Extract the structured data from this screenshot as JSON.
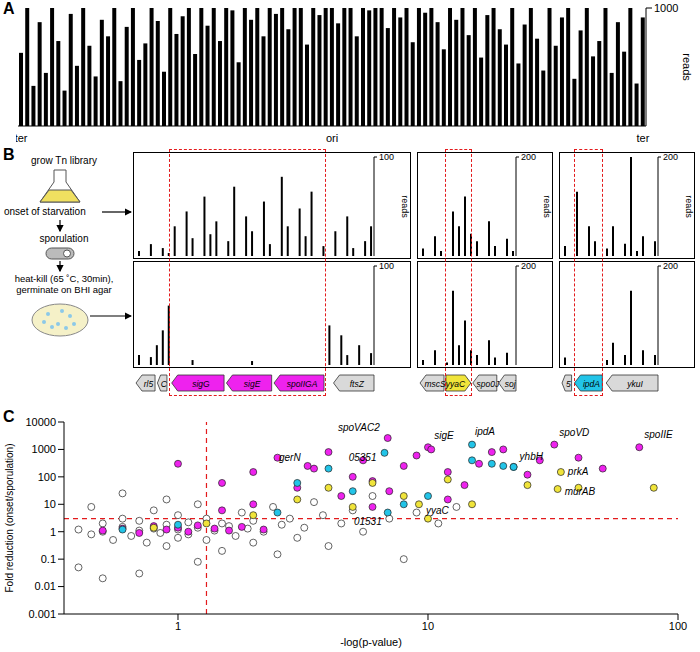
{
  "panel_labels": [
    "A",
    "B",
    "C"
  ],
  "workflow": {
    "steps": [
      "grow Tn library",
      "onset of starvation",
      "sporulation",
      "heat-kill (65 ˚C, 30min), germinate on BHI agar"
    ]
  },
  "gene_maps": [
    [
      {
        "label": "rl5",
        "color": "#d9d9d9"
      },
      {
        "label": "C",
        "color": "#d9d9d9"
      },
      {
        "label": "sigG",
        "color": "#ee22ee"
      },
      {
        "label": "sigE",
        "color": "#ee22ee"
      },
      {
        "label": "spoIIGA",
        "color": "#ee22ee"
      },
      {
        "label": "ftsZ",
        "color": "#d9d9d9"
      }
    ],
    [
      {
        "label": "mscS",
        "color": "#d9d9d9"
      },
      {
        "label": "yyaC",
        "color": "#f0e43a"
      },
      {
        "label": "spo0J",
        "color": "#d9d9d9"
      },
      {
        "label": "soj",
        "color": "#d9d9d9"
      }
    ],
    [
      {
        "label": "5",
        "color": "#d9d9d9"
      },
      {
        "label": "ipdA",
        "color": "#22c4e8"
      },
      {
        "label": "ykuI",
        "color": "#d9d9d9"
      }
    ]
  ],
  "chart_data": [
    {
      "type": "bar",
      "color": "#000000",
      "y_label": "reads",
      "ylim": [
        0,
        1000
      ],
      "yticks": [
        1000
      ],
      "categories": [
        "ter",
        null,
        null,
        null,
        null,
        null,
        null,
        null,
        null,
        null,
        null,
        null,
        null,
        null,
        null,
        null,
        null,
        null,
        null,
        null,
        null,
        null,
        null,
        null,
        null,
        null,
        null,
        null,
        null,
        null,
        null,
        null,
        null,
        null,
        null,
        null,
        null,
        null,
        null,
        null,
        null,
        null,
        null,
        null,
        null,
        null,
        null,
        null,
        null,
        null,
        "ori",
        null,
        null,
        null,
        null,
        null,
        null,
        null,
        null,
        null,
        null,
        null,
        null,
        null,
        null,
        null,
        null,
        null,
        null,
        null,
        null,
        null,
        null,
        null,
        null,
        null,
        null,
        null,
        null,
        null,
        null,
        null,
        null,
        null,
        null,
        null,
        null,
        null,
        null,
        null,
        null,
        null,
        null,
        null,
        null,
        null,
        null,
        null,
        null,
        null,
        "ter"
      ],
      "values": [
        620,
        1000,
        340,
        880,
        450,
        1000,
        720,
        300,
        950,
        510,
        1000,
        680,
        420,
        900,
        760,
        1000,
        380,
        840,
        1000,
        560,
        700,
        1000,
        890,
        460,
        1000,
        780,
        930,
        1000,
        610,
        1000,
        850,
        1000,
        720,
        1000,
        980,
        540,
        1000,
        900,
        1000,
        760,
        1000,
        950,
        1000,
        820,
        1000,
        1000,
        690,
        1000,
        940,
        1000,
        1000,
        870,
        1000,
        1000,
        760,
        1000,
        980,
        1000,
        1000,
        830,
        1000,
        920,
        1000,
        710,
        1000,
        960,
        1000,
        880,
        650,
        1000,
        900,
        1000,
        770,
        1000,
        580,
        940,
        1000,
        820,
        690,
        1000,
        530,
        860,
        1000,
        740,
        470,
        1000,
        680,
        920,
        1000,
        400,
        810,
        1000,
        590,
        720,
        1000,
        450,
        880,
        630,
        1000,
        360,
        920
      ]
    },
    {
      "type": "bar",
      "color": "#000000",
      "y_label": "reads",
      "ylim": [
        0,
        100
      ],
      "yticks": [
        100
      ],
      "categories": [
        null,
        null,
        null,
        null,
        null,
        null,
        null,
        null,
        null,
        null,
        null,
        null,
        null,
        null,
        null,
        null,
        null,
        null,
        null,
        null,
        null,
        null,
        null,
        null,
        null,
        null,
        null,
        null,
        null,
        null,
        null,
        null,
        null,
        null,
        null,
        null,
        null,
        null,
        null,
        null
      ],
      "series": [
        {
          "values": [
            5,
            0,
            12,
            0,
            8,
            3,
            30,
            0,
            45,
            18,
            0,
            60,
            22,
            35,
            0,
            15,
            70,
            0,
            40,
            25,
            0,
            55,
            12,
            0,
            80,
            30,
            0,
            48,
            20,
            65,
            0,
            10,
            0,
            25,
            0,
            40,
            8,
            0,
            15,
            30
          ]
        },
        {
          "values": [
            10,
            0,
            8,
            20,
            35,
            60,
            0,
            0,
            0,
            5,
            0,
            0,
            0,
            0,
            0,
            0,
            0,
            0,
            0,
            4,
            0,
            0,
            0,
            0,
            0,
            0,
            0,
            0,
            0,
            0,
            0,
            0,
            40,
            0,
            30,
            10,
            0,
            20,
            0,
            12
          ]
        }
      ]
    },
    {
      "type": "bar",
      "color": "#000000",
      "y_label": "reads",
      "ylim": [
        0,
        200
      ],
      "yticks": [
        200
      ],
      "categories": [
        null,
        null,
        null,
        null,
        null,
        null,
        null,
        null,
        null,
        null,
        null,
        null,
        null,
        null,
        null,
        null
      ],
      "series": [
        {
          "values": [
            15,
            0,
            40,
            10,
            0,
            90,
            60,
            120,
            45,
            30,
            0,
            70,
            20,
            0,
            35,
            10
          ]
        },
        {
          "values": [
            10,
            0,
            30,
            0,
            5,
            150,
            40,
            90,
            30,
            20,
            0,
            50,
            15,
            0,
            25,
            0
          ]
        }
      ]
    },
    {
      "type": "bar",
      "color": "#000000",
      "y_label": "reads",
      "ylim": [
        0,
        200
      ],
      "yticks": [
        200
      ],
      "categories": [
        null,
        null,
        null,
        null,
        null,
        null,
        null,
        null,
        null,
        null,
        null,
        null,
        null,
        null,
        null,
        null
      ],
      "series": [
        {
          "values": [
            20,
            0,
            130,
            0,
            60,
            30,
            0,
            15,
            60,
            0,
            25,
            200,
            10,
            40,
            0,
            30
          ]
        },
        {
          "values": [
            15,
            0,
            0,
            0,
            0,
            0,
            0,
            10,
            45,
            0,
            20,
            150,
            0,
            30,
            0,
            20
          ]
        }
      ]
    },
    {
      "type": "scatter",
      "x_label": "-log(p-value)",
      "y_label": "Fold reduction (onset/sporulation)",
      "log": true,
      "xlim": [
        0.35,
        100
      ],
      "xticks": [
        1,
        10,
        100
      ],
      "ylim": [
        0.001,
        10000
      ],
      "yticks": [
        0.001,
        0.01,
        0.1,
        1,
        10,
        100,
        1000,
        10000
      ],
      "thresholds": {
        "x": 1.3,
        "y": 3
      },
      "series": [
        {
          "color": "#ffffff",
          "x": [
            0.4,
            0.45,
            0.5,
            0.5,
            0.55,
            0.6,
            0.6,
            0.65,
            0.7,
            0.7,
            0.75,
            0.8,
            0.8,
            0.85,
            0.9,
            0.9,
            1,
            1,
            1,
            1.1,
            1.1,
            1.2,
            1.2,
            1.3,
            1.3,
            1.4,
            1.5,
            1.5,
            1.6,
            1.7,
            1.8,
            1.9,
            2,
            2,
            2.2,
            2.4,
            2.5,
            2.6,
            2.8,
            3,
            3.2,
            3.5,
            3.8,
            4,
            4.5,
            5,
            5.5,
            6,
            7,
            8,
            9,
            11,
            13,
            0.4,
            0.5,
            0.7,
            1.2,
            0.9,
            0.6,
            0.45
          ],
          "values": [
            1.2,
            0.8,
            2,
            1,
            0.5,
            1.5,
            3,
            0.7,
            1.1,
            2.5,
            0.4,
            1.3,
            6,
            0.9,
            1.8,
            0.3,
            1.2,
            4,
            0.6,
            2.2,
            0.8,
            1.4,
            10,
            0.5,
            3,
            1.1,
            0.2,
            2,
            1.6,
            0.7,
            5,
            1.3,
            0.4,
            2.5,
            1,
            8,
            0.15,
            1.8,
            3,
            0.6,
            1.4,
            12,
            4,
            0.3,
            2,
            6,
            1,
            20,
            3,
            0.1,
            5,
            2,
            8,
            0.05,
            0.02,
            0.03,
            0.08,
            15,
            25,
            8
          ]
        },
        {
          "color": "#ee22ee",
          "x": [
            0.5,
            0.6,
            0.7,
            0.8,
            0.9,
            1,
            1.1,
            1.2,
            1.4,
            1.6,
            1.8,
            2.2,
            1,
            1.5,
            2,
            2.5,
            3,
            3.5,
            4,
            4.5,
            5,
            5.5,
            6,
            7,
            8,
            9,
            10,
            12,
            14,
            16,
            18,
            20,
            25,
            28,
            40,
            50,
            12,
            6,
            2,
            1.5
          ],
          "values": [
            1.1,
            1.3,
            0.9,
            1.6,
            1.2,
            1.4,
            1,
            1.7,
            1.3,
            1.1,
            1.5,
            1.2,
            300,
            60,
            150,
            500,
            40,
            200,
            800,
            20,
            100,
            400,
            70,
            30,
            250,
            600,
            1200,
            150,
            50,
            300,
            800,
            1000,
            120,
            400,
            500,
            200,
            15,
            8,
            10,
            6
          ]
        },
        {
          "color": "#22c4e8",
          "x": [
            0.6,
            1,
            2.5,
            3,
            4,
            5,
            8,
            10,
            18,
            20,
            22,
            15
          ],
          "values": [
            1.2,
            1.8,
            5,
            60,
            200,
            30,
            10,
            20,
            300,
            250,
            230,
            400
          ]
        },
        {
          "color": "#f0e43a",
          "x": [
            0.8,
            1.3,
            2,
            3,
            4,
            5,
            6,
            8,
            12,
            15,
            25,
            40,
            80,
            10
          ],
          "values": [
            1.4,
            2,
            4,
            15,
            40,
            8,
            60,
            20,
            80,
            10,
            50,
            40,
            40,
            3
          ]
        }
      ],
      "annotations": [
        {
          "text": "spoVAC2",
          "x": 6.9,
          "y": 2600,
          "color": "#ee22ee"
        },
        {
          "text": "ipdA",
          "x": 15,
          "y": 1500,
          "color": "#22c4e8"
        },
        {
          "text": "spoVD",
          "x": 32,
          "y": 1500,
          "color": "#ee22ee"
        },
        {
          "text": "sigE",
          "x": 10.3,
          "y": 1000,
          "color": "#ee22ee"
        },
        {
          "text": "05351",
          "x": 6.7,
          "y": 750,
          "color": "#22c4e8"
        },
        {
          "text": "spoIIE",
          "x": 70,
          "y": 1200,
          "color": "#ee22ee"
        },
        {
          "text": "gerN",
          "x": 3.3,
          "y": 250,
          "color": "#ee22ee"
        },
        {
          "text": "yhbH",
          "x": 22,
          "y": 230,
          "color": "#22c4e8"
        },
        {
          "text": "prkA",
          "x": 34,
          "y": 150,
          "color": "#f0e43a"
        },
        {
          "text": "murAB",
          "x": 33,
          "y": 36,
          "color": "#f0e43a"
        },
        {
          "text": "yyaC",
          "x": 9.2,
          "y": 10,
          "color": "#f0e43a"
        },
        {
          "text": "01531",
          "x": 6.9,
          "y": 5,
          "color": "#22c4e8"
        }
      ]
    }
  ]
}
